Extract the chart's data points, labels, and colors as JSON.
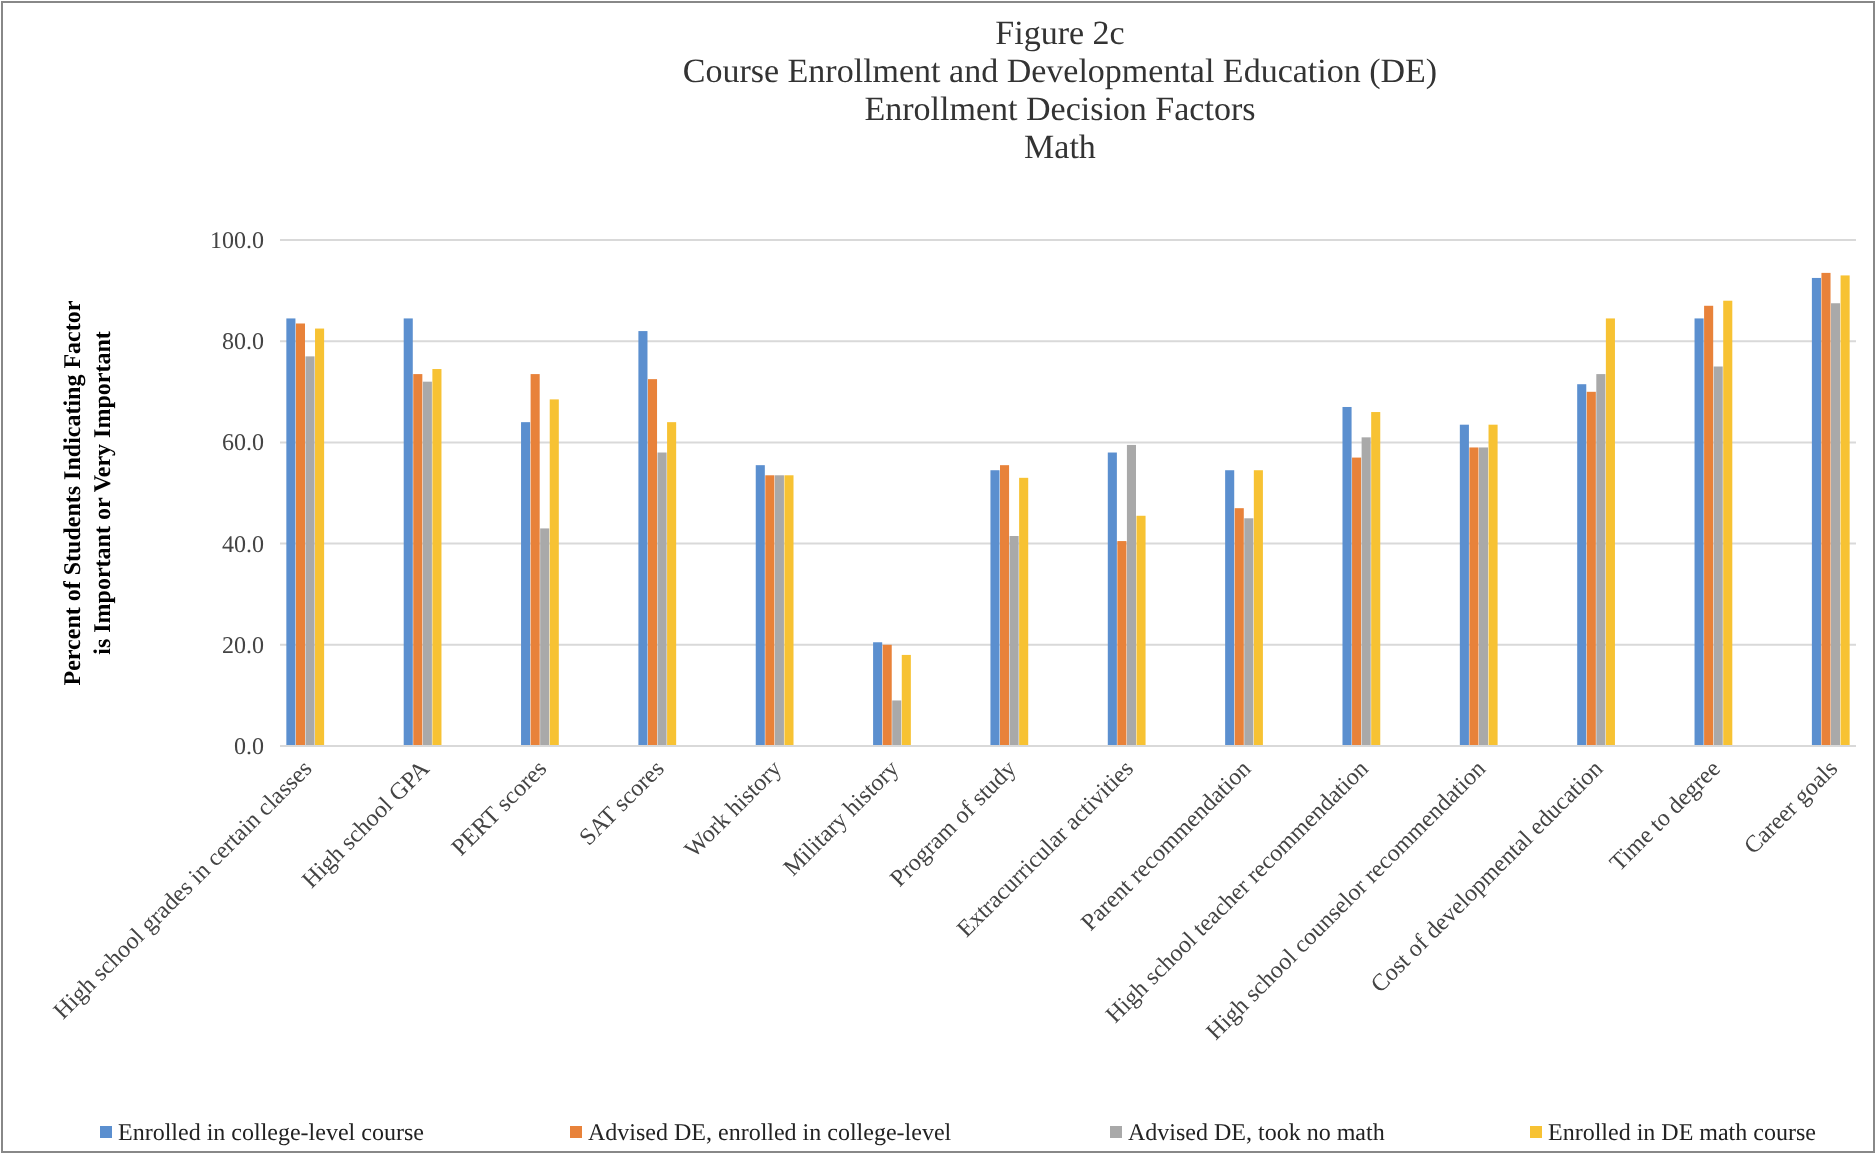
{
  "chart_data": {
    "type": "bar",
    "title": "Figure 2c\nCourse Enrollment and Developmental Education (DE)\nEnrollment Decision Factors\nMath",
    "ylabel": "Percent of Students Indicating Factor\nis Important or Very Important",
    "categories": [
      "High school grades in certain classes",
      "High school GPA",
      "PERT scores",
      "SAT scores",
      "Work history",
      "Military history",
      "Program of study",
      "Extracurricular activities",
      "Parent recommendation",
      "High school teacher recommendation",
      "High school counselor recommendation",
      "Cost of developmental education",
      "Time to degree",
      "Career goals"
    ],
    "series": [
      {
        "name": "Enrolled in college-level course",
        "color": "#5b8fcf",
        "values": [
          84.5,
          84.5,
          64,
          82,
          55.5,
          20.5,
          54.5,
          58,
          54.5,
          67,
          63.5,
          71.5,
          84.5,
          92.5
        ]
      },
      {
        "name": "Advised DE, enrolled in college-level",
        "color": "#e8823a",
        "values": [
          83.5,
          73.5,
          73.5,
          72.5,
          53.5,
          20,
          55.5,
          40.5,
          47,
          57,
          59,
          70,
          87,
          93.5
        ]
      },
      {
        "name": "Advised DE, took no math",
        "color": "#a9a9a9",
        "values": [
          77,
          72,
          43,
          58,
          53.5,
          9,
          41.5,
          59.5,
          45,
          61,
          59,
          73.5,
          75,
          87.5
        ]
      },
      {
        "name": "Enrolled in DE math course",
        "color": "#f7c233",
        "values": [
          82.5,
          74.5,
          68.5,
          64,
          53.5,
          18,
          53,
          45.5,
          54.5,
          66,
          63.5,
          84.5,
          88,
          93
        ]
      }
    ],
    "ylim": [
      0,
      100
    ],
    "yticks": [
      {
        "value": 0,
        "label": "0.0"
      },
      {
        "value": 20,
        "label": "20.0"
      },
      {
        "value": 40,
        "label": "40.0"
      },
      {
        "value": 60,
        "label": "60.0"
      },
      {
        "value": 80,
        "label": "80.0"
      },
      {
        "value": 100,
        "label": "100.0"
      }
    ],
    "grid": "y",
    "legend": "bottom"
  }
}
